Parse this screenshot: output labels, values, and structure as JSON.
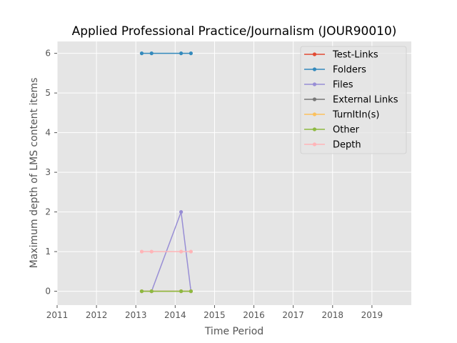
{
  "chart_data": {
    "type": "line",
    "title": "Applied Professional Practice/Journalism (JOUR90010)",
    "xlabel": "Time Period",
    "ylabel": "Maximum depth of LMS content items",
    "xlim": [
      2011,
      2020
    ],
    "ylim": [
      -0.35,
      6.3
    ],
    "x_ticks": [
      2011,
      2012,
      2013,
      2014,
      2015,
      2016,
      2017,
      2018,
      2019
    ],
    "x_tick_labels": [
      "2011",
      "2012",
      "2013",
      "2014",
      "2015",
      "2016",
      "2017",
      "2018",
      "2019"
    ],
    "y_ticks": [
      0,
      1,
      2,
      3,
      4,
      5,
      6
    ],
    "y_tick_labels": [
      "0",
      "1",
      "2",
      "3",
      "4",
      "5",
      "6"
    ],
    "grid": true,
    "legend_position": "top-right",
    "x": [
      2013.15,
      2013.4,
      2014.15,
      2014.4
    ],
    "series": [
      {
        "name": "Test-Links",
        "color": "#E24A33",
        "values": [
          0,
          0,
          0,
          0
        ]
      },
      {
        "name": "Folders",
        "color": "#348ABD",
        "values": [
          6,
          6,
          6,
          6
        ]
      },
      {
        "name": "Files",
        "color": "#988ED5",
        "values": [
          0,
          0,
          2,
          0
        ]
      },
      {
        "name": "External Links",
        "color": "#777777",
        "values": [
          0,
          0,
          0,
          0
        ]
      },
      {
        "name": "TurnItIn(s)",
        "color": "#FBC15E",
        "values": [
          0,
          0,
          0,
          0
        ]
      },
      {
        "name": "Other",
        "color": "#8EBA42",
        "values": [
          0,
          0,
          0,
          0
        ]
      },
      {
        "name": "Depth",
        "color": "#FFB5B8",
        "values": [
          1,
          1,
          1,
          1
        ]
      }
    ]
  }
}
